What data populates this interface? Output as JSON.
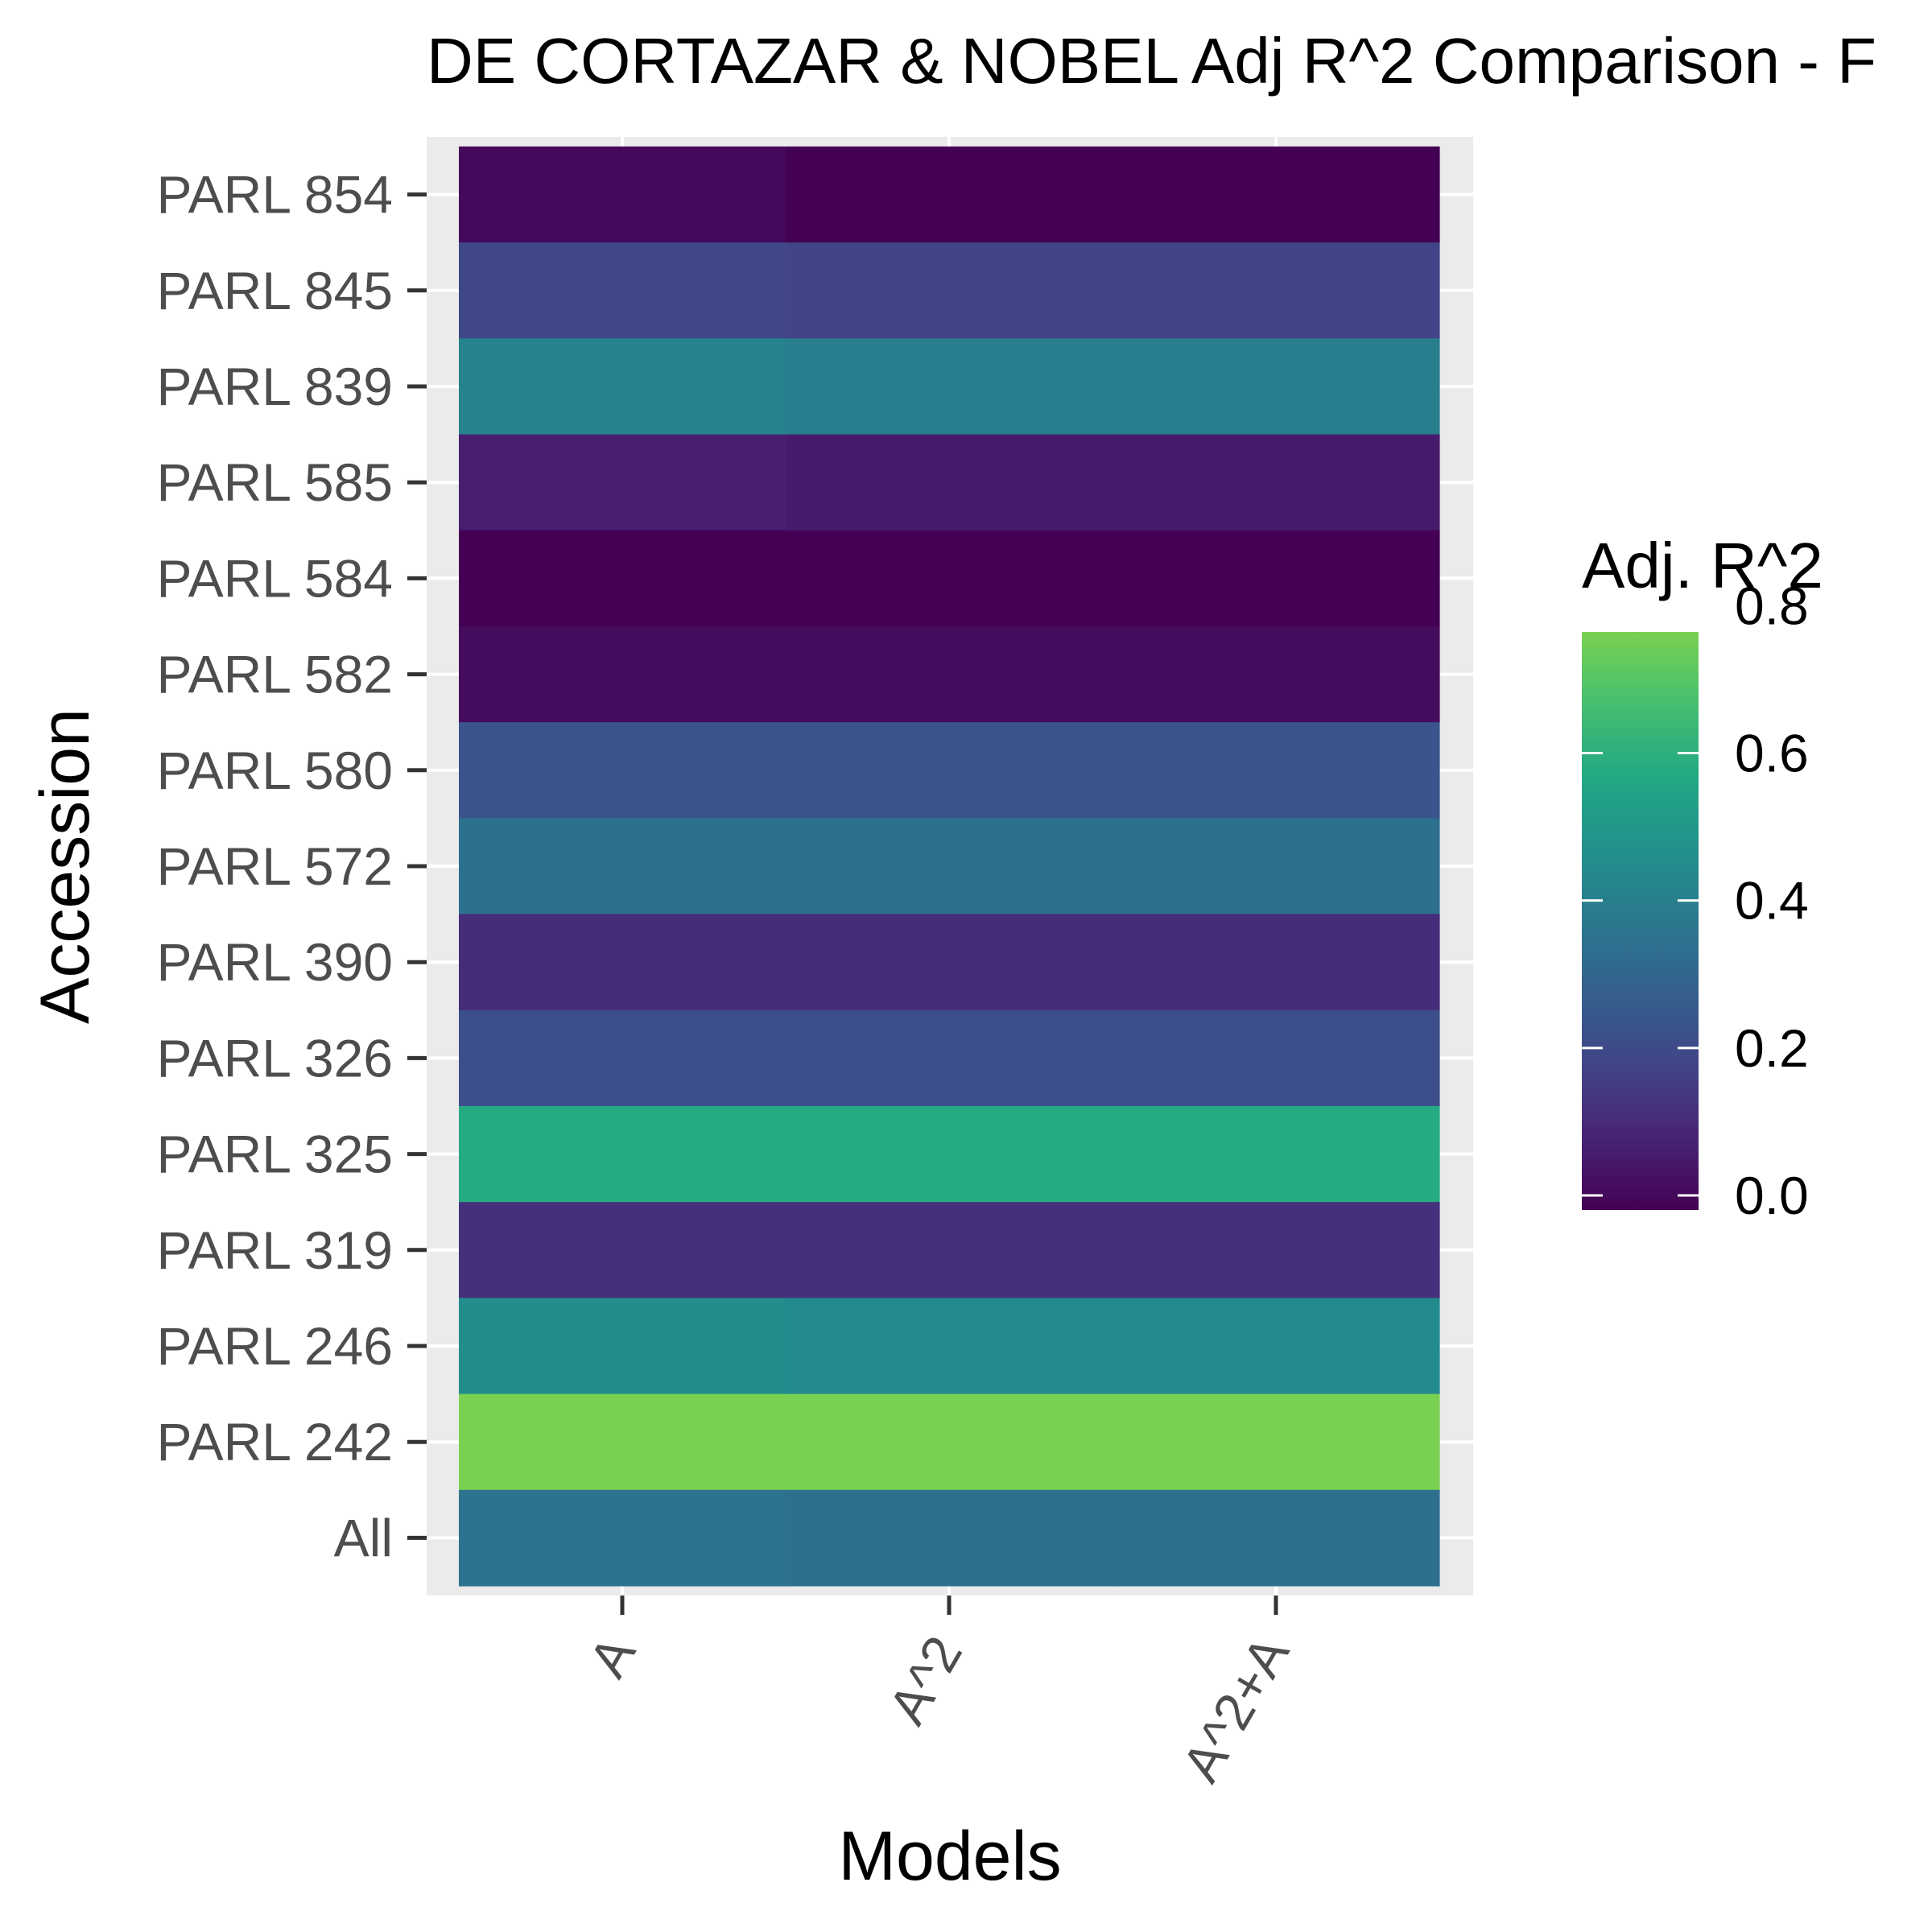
{
  "chart_data": {
    "type": "heatmap",
    "title": "DE CORTAZAR & NOBEL Adj R^2 Comparison - F",
    "xlabel": "Models",
    "ylabel": "Accession",
    "x_categories": [
      "A",
      "A^2",
      "A^2+A"
    ],
    "y_categories": [
      "PARL 854",
      "PARL 845",
      "PARL 839",
      "PARL 585",
      "PARL 584",
      "PARL 582",
      "PARL 580",
      "PARL 572",
      "PARL 390",
      "PARL 326",
      "PARL 325",
      "PARL 319",
      "PARL 246",
      "PARL 242",
      "All"
    ],
    "values": [
      [
        0.02,
        0.0,
        0.0
      ],
      [
        0.2,
        0.19,
        0.19
      ],
      [
        0.42,
        0.4,
        0.4
      ],
      [
        0.08,
        0.07,
        0.07
      ],
      [
        0.0,
        0.0,
        0.0
      ],
      [
        0.03,
        0.03,
        0.03
      ],
      [
        0.25,
        0.25,
        0.25
      ],
      [
        0.35,
        0.35,
        0.35
      ],
      [
        0.12,
        0.12,
        0.12
      ],
      [
        0.23,
        0.23,
        0.23
      ],
      [
        0.58,
        0.58,
        0.58
      ],
      [
        0.13,
        0.13,
        0.13
      ],
      [
        0.46,
        0.45,
        0.45
      ],
      [
        0.76,
        0.76,
        0.76
      ],
      [
        0.36,
        0.35,
        0.35
      ]
    ],
    "colorbar": {
      "title": "Adj. R^2",
      "range": [
        0.0,
        0.8
      ],
      "ticks": [
        "0.0",
        "0.2",
        "0.4",
        "0.6",
        "0.8"
      ],
      "colormap": "viridis",
      "low_color": "#440154",
      "high_color": "#7ad151"
    },
    "panel_background": "#ebebeb",
    "grid": true,
    "legend_position": "right"
  }
}
